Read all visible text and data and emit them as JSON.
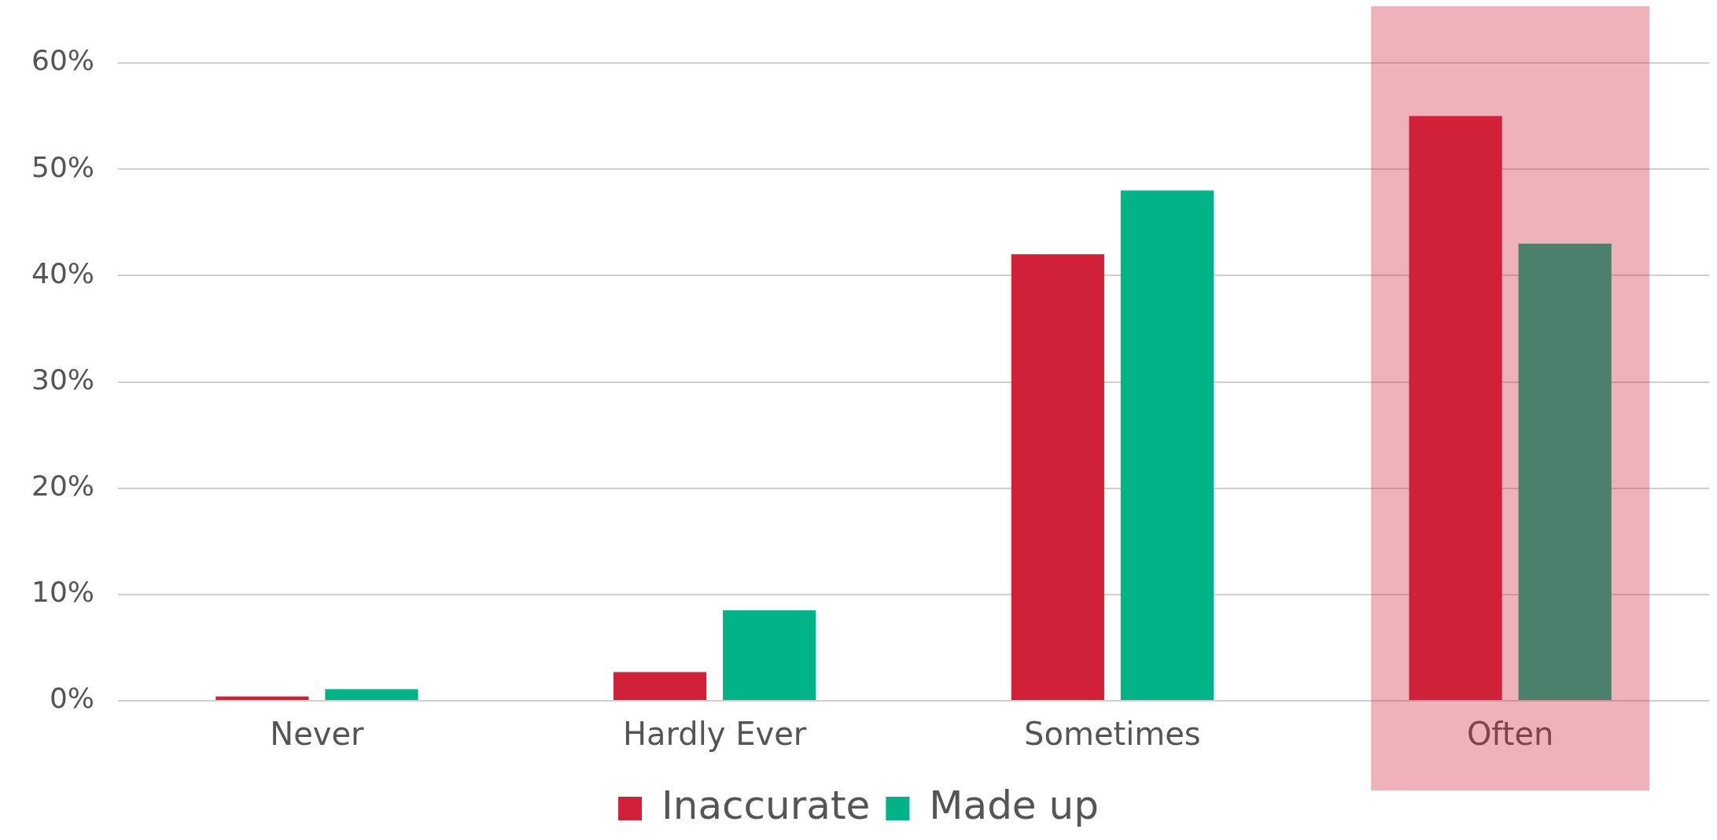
{
  "chart_data": {
    "type": "bar",
    "categories": [
      "Never",
      "Hardly Ever",
      "Sometimes",
      "Often"
    ],
    "series": [
      {
        "name": "Inaccurate",
        "color": "#d12138",
        "values": [
          0.4,
          2.7,
          42,
          55
        ]
      },
      {
        "name": "Made up",
        "color": "#02b388",
        "values": [
          1.1,
          8.5,
          48,
          43
        ]
      }
    ],
    "ylim": [
      0,
      60
    ],
    "yticks": [
      {
        "value": 0,
        "label": "0%"
      },
      {
        "value": 10,
        "label": "10%"
      },
      {
        "value": 20,
        "label": "20%"
      },
      {
        "value": 30,
        "label": "30%"
      },
      {
        "value": 40,
        "label": "40%"
      },
      {
        "value": 50,
        "label": "50%"
      },
      {
        "value": 60,
        "label": "60%"
      }
    ],
    "bands": [
      {
        "axis": "x",
        "from": "Often",
        "to": "Often",
        "color": "#d12138"
      }
    ],
    "grid": "y",
    "legend": "bottom"
  }
}
